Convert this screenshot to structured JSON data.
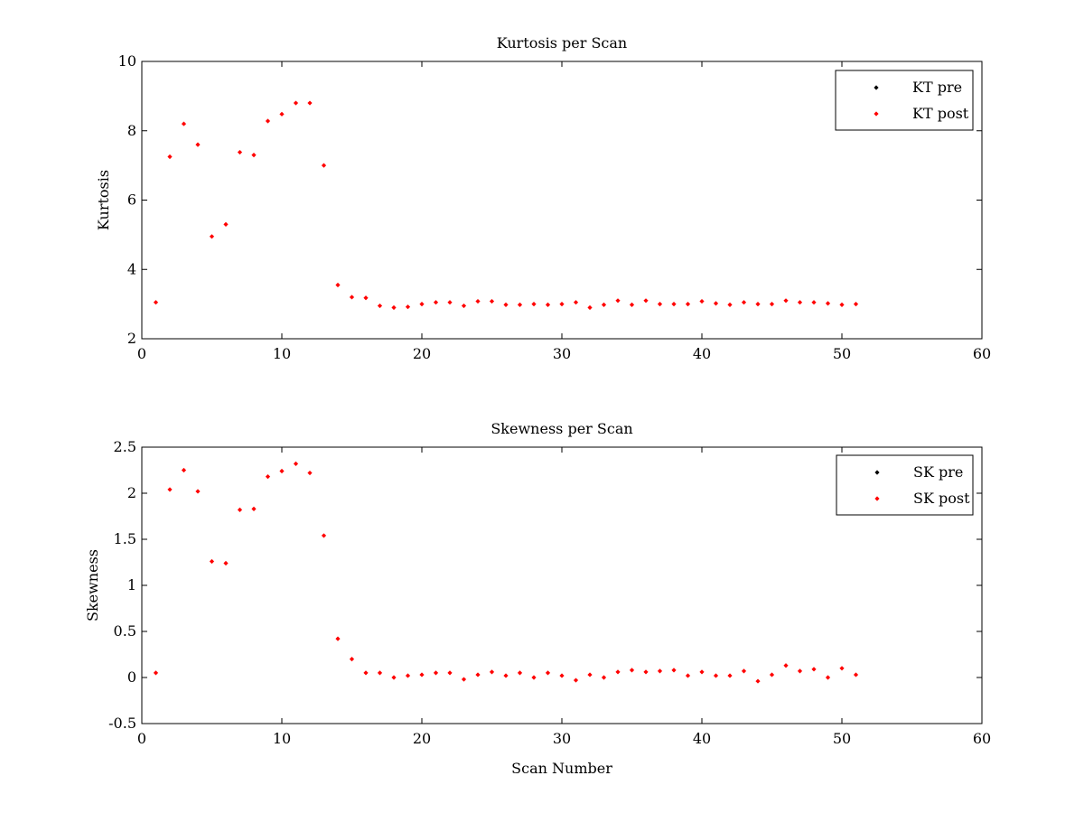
{
  "chart_data": [
    {
      "type": "scatter",
      "title": "Kurtosis per Scan",
      "xlabel": "",
      "ylabel": "Kurtosis",
      "xlim": [
        0,
        60
      ],
      "ylim": [
        2,
        10
      ],
      "xticks": [
        0,
        10,
        20,
        30,
        40,
        50,
        60
      ],
      "yticks": [
        2,
        4,
        6,
        8,
        10
      ],
      "grid": false,
      "legend_position": "top-right",
      "series": [
        {
          "name": "KT pre",
          "color": "#000000",
          "x": [],
          "y": []
        },
        {
          "name": "KT post",
          "color": "#ff0000",
          "x": [
            1,
            2,
            3,
            4,
            5,
            6,
            7,
            8,
            9,
            10,
            11,
            12,
            13,
            14,
            15,
            16,
            17,
            18,
            19,
            20,
            21,
            22,
            23,
            24,
            25,
            26,
            27,
            28,
            29,
            30,
            31,
            32,
            33,
            34,
            35,
            36,
            37,
            38,
            39,
            40,
            41,
            42,
            43,
            44,
            45,
            46,
            47,
            48,
            49,
            50,
            51
          ],
          "y": [
            3.05,
            7.25,
            8.2,
            7.6,
            4.95,
            5.3,
            7.38,
            7.3,
            8.28,
            8.48,
            8.8,
            8.8,
            7.0,
            3.55,
            3.2,
            3.18,
            2.95,
            2.9,
            2.92,
            3.0,
            3.05,
            3.05,
            2.95,
            3.08,
            3.08,
            2.98,
            2.98,
            3.0,
            2.98,
            3.0,
            3.05,
            2.9,
            2.98,
            3.1,
            2.98,
            3.1,
            3.0,
            3.0,
            3.0,
            3.08,
            3.02,
            2.98,
            3.05,
            3.0,
            3.0,
            3.1,
            3.05,
            3.05,
            3.02,
            2.98,
            3.0
          ]
        }
      ]
    },
    {
      "type": "scatter",
      "title": "Skewness per Scan",
      "xlabel": "Scan Number",
      "ylabel": "Skewness",
      "xlim": [
        0,
        60
      ],
      "ylim": [
        -0.5,
        2.5
      ],
      "xticks": [
        0,
        10,
        20,
        30,
        40,
        50,
        60
      ],
      "yticks": [
        -0.5,
        0,
        0.5,
        1,
        1.5,
        2,
        2.5
      ],
      "grid": false,
      "legend_position": "top-right",
      "series": [
        {
          "name": "SK pre",
          "color": "#000000",
          "x": [],
          "y": []
        },
        {
          "name": "SK post",
          "color": "#ff0000",
          "x": [
            1,
            2,
            3,
            4,
            5,
            6,
            7,
            8,
            9,
            10,
            11,
            12,
            13,
            14,
            15,
            16,
            17,
            18,
            19,
            20,
            21,
            22,
            23,
            24,
            25,
            26,
            27,
            28,
            29,
            30,
            31,
            32,
            33,
            34,
            35,
            36,
            37,
            38,
            39,
            40,
            41,
            42,
            43,
            44,
            45,
            46,
            47,
            48,
            49,
            50,
            51
          ],
          "y": [
            0.05,
            2.04,
            2.25,
            2.02,
            1.26,
            1.24,
            1.82,
            1.83,
            2.18,
            2.24,
            2.32,
            2.22,
            1.54,
            0.42,
            0.2,
            0.05,
            0.05,
            0.0,
            0.02,
            0.03,
            0.05,
            0.05,
            -0.02,
            0.03,
            0.06,
            0.02,
            0.05,
            0.0,
            0.05,
            0.02,
            -0.03,
            0.03,
            0.0,
            0.06,
            0.08,
            0.06,
            0.07,
            0.08,
            0.02,
            0.06,
            0.02,
            0.02,
            0.07,
            -0.04,
            0.03,
            0.13,
            0.07,
            0.09,
            0.0,
            0.1,
            0.03
          ]
        }
      ]
    }
  ]
}
